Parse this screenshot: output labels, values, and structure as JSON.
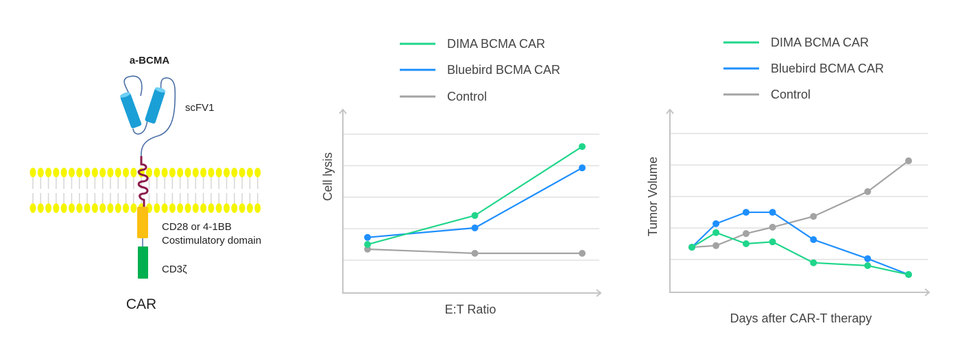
{
  "diagram": {
    "antigen_label": "a-BCMA",
    "scfv_label": "scFV1",
    "costim_label_line1": "CD28 or 4-1BB",
    "costim_label_line2": "Costimulatory domain",
    "cd3_label": "CD3ζ",
    "title": "CAR",
    "colors": {
      "membrane_head": "#f5f500",
      "scfv": "#1a9fd6",
      "hinge": "#8b1a4a",
      "costim": "#fbbf12",
      "cd3": "#00b050",
      "linker": "#4a6fa5"
    }
  },
  "legend": [
    {
      "label": "DIMA BCMA CAR",
      "color": "#1fd68a"
    },
    {
      "label": "Bluebird BCMA CAR",
      "color": "#1e8fff"
    },
    {
      "label": "Control",
      "color": "#a3a3a3"
    }
  ],
  "chart_data": [
    {
      "type": "line",
      "xlabel": "E:T Ratio",
      "ylabel": "Cell lysis",
      "x": [
        1,
        2,
        3
      ],
      "ylim": [
        0,
        5.2
      ],
      "grid": true,
      "legend_position": "top",
      "series": [
        {
          "name": "DIMA BCMA CAR",
          "values": [
            1.53,
            2.44,
            4.61
          ]
        },
        {
          "name": "Bluebird BCMA CAR",
          "values": [
            1.75,
            2.05,
            3.94
          ]
        },
        {
          "name": "Control",
          "values": [
            1.38,
            1.25,
            1.25
          ]
        }
      ]
    },
    {
      "type": "line",
      "xlabel": "Days after CAR-T therapy",
      "ylabel": "Tumor Volume",
      "x": [
        0,
        1,
        2.25,
        3.35,
        5.05,
        7.3,
        9
      ],
      "ylim": [
        0,
        5.2
      ],
      "grid": true,
      "legend_position": "top",
      "series": [
        {
          "name": "DIMA BCMA CAR",
          "values": [
            1.42,
            1.88,
            1.53,
            1.59,
            0.93,
            0.84,
            0.56
          ]
        },
        {
          "name": "Bluebird BCMA CAR",
          "values": [
            1.42,
            2.16,
            2.52,
            2.52,
            1.66,
            1.06,
            0.56
          ]
        },
        {
          "name": "Control",
          "values": [
            1.42,
            1.47,
            1.85,
            2.05,
            2.39,
            3.17,
            4.14
          ]
        }
      ]
    }
  ]
}
